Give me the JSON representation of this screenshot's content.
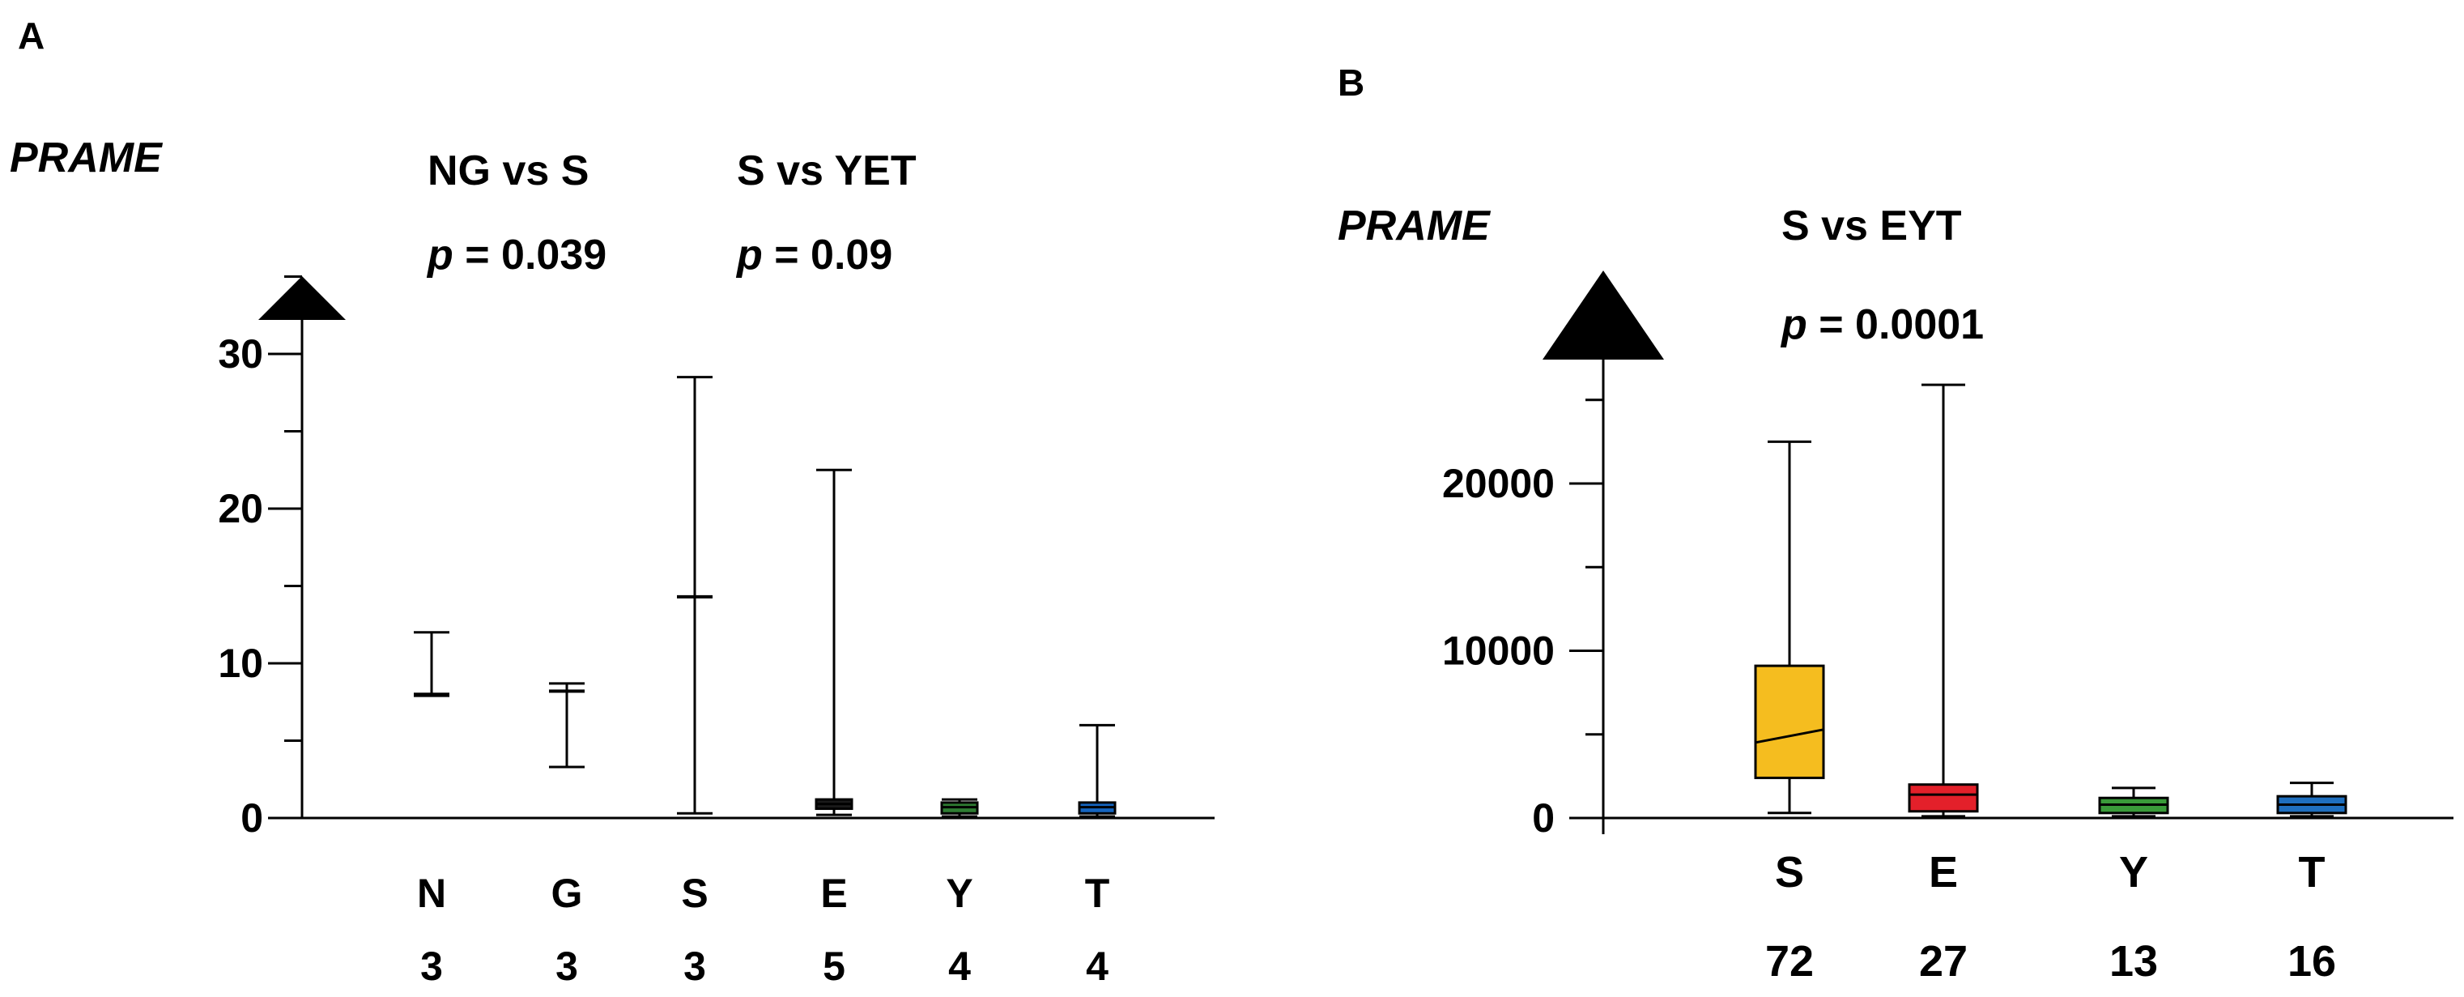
{
  "chart_data": [
    {
      "panel_label": "A",
      "type": "box",
      "ylabel": "PRAME",
      "ylim": [
        0,
        30
      ],
      "ytick_labels": [
        "0",
        "10",
        "20",
        "30"
      ],
      "ytick_values": [
        0,
        10,
        20,
        30
      ],
      "minor_ticks": [
        5,
        15,
        25,
        35
      ],
      "comparisons": [
        {
          "label": "NG vs S",
          "p_prefix": "p",
          "p_value": " = 0.039"
        },
        {
          "label": "S vs YET",
          "p_prefix": "p",
          "p_value": " = 0.09"
        }
      ],
      "categories": [
        "N",
        "G",
        "S",
        "E",
        "Y",
        "T"
      ],
      "n": [
        "3",
        "3",
        "3",
        "5",
        "4",
        "4"
      ],
      "boxes": [
        {
          "min": 7.9,
          "q1": 7.9,
          "median": 8.0,
          "q3": 8.1,
          "max": 12.0,
          "color": "#000000",
          "style": "whisker"
        },
        {
          "min": 3.3,
          "q1": 8.1,
          "median": 8.2,
          "q3": 8.3,
          "max": 8.7,
          "color": "#000000",
          "style": "whisker"
        },
        {
          "min": 0.3,
          "q1": 14.3,
          "median": 14.3,
          "q3": 14.3,
          "max": 28.5,
          "color": "#000000",
          "style": "whisker"
        },
        {
          "min": 0.2,
          "q1": 0.6,
          "median": 0.9,
          "q3": 1.2,
          "max": 22.5,
          "color": "#1a1a1a",
          "style": "box"
        },
        {
          "min": 0.1,
          "q1": 0.3,
          "median": 0.7,
          "q3": 1.0,
          "max": 1.2,
          "color": "#2e7d32",
          "style": "box"
        },
        {
          "min": 0.1,
          "q1": 0.3,
          "median": 0.7,
          "q3": 1.0,
          "max": 6.0,
          "color": "#1565c0",
          "style": "box"
        }
      ]
    },
    {
      "panel_label": "B",
      "type": "box",
      "ylabel": "PRAME",
      "ylim": [
        0,
        27000
      ],
      "ytick_labels": [
        "0",
        "10000",
        "20000"
      ],
      "ytick_values": [
        0,
        10000,
        20000
      ],
      "minor_ticks": [
        5000,
        15000,
        25000
      ],
      "comparisons": [
        {
          "label": "S vs EYT",
          "p_prefix": "p",
          "p_value": " = 0.0001"
        }
      ],
      "categories": [
        "S",
        "E",
        "Y",
        "T"
      ],
      "n": [
        "72",
        "27",
        "13",
        "16"
      ],
      "boxes": [
        {
          "min": 300,
          "q1": 2400,
          "median": 4900,
          "q3": 9100,
          "max": 22500,
          "color": "#f5bd1f",
          "style": "box"
        },
        {
          "min": 100,
          "q1": 400,
          "median": 1400,
          "q3": 2000,
          "max": 25900,
          "color": "#e3202a",
          "style": "box"
        },
        {
          "min": 100,
          "q1": 300,
          "median": 800,
          "q3": 1200,
          "max": 1800,
          "color": "#3a9b3a",
          "style": "box"
        },
        {
          "min": 100,
          "q1": 300,
          "median": 800,
          "q3": 1300,
          "max": 2100,
          "color": "#1f6fbf",
          "style": "box"
        }
      ]
    }
  ]
}
